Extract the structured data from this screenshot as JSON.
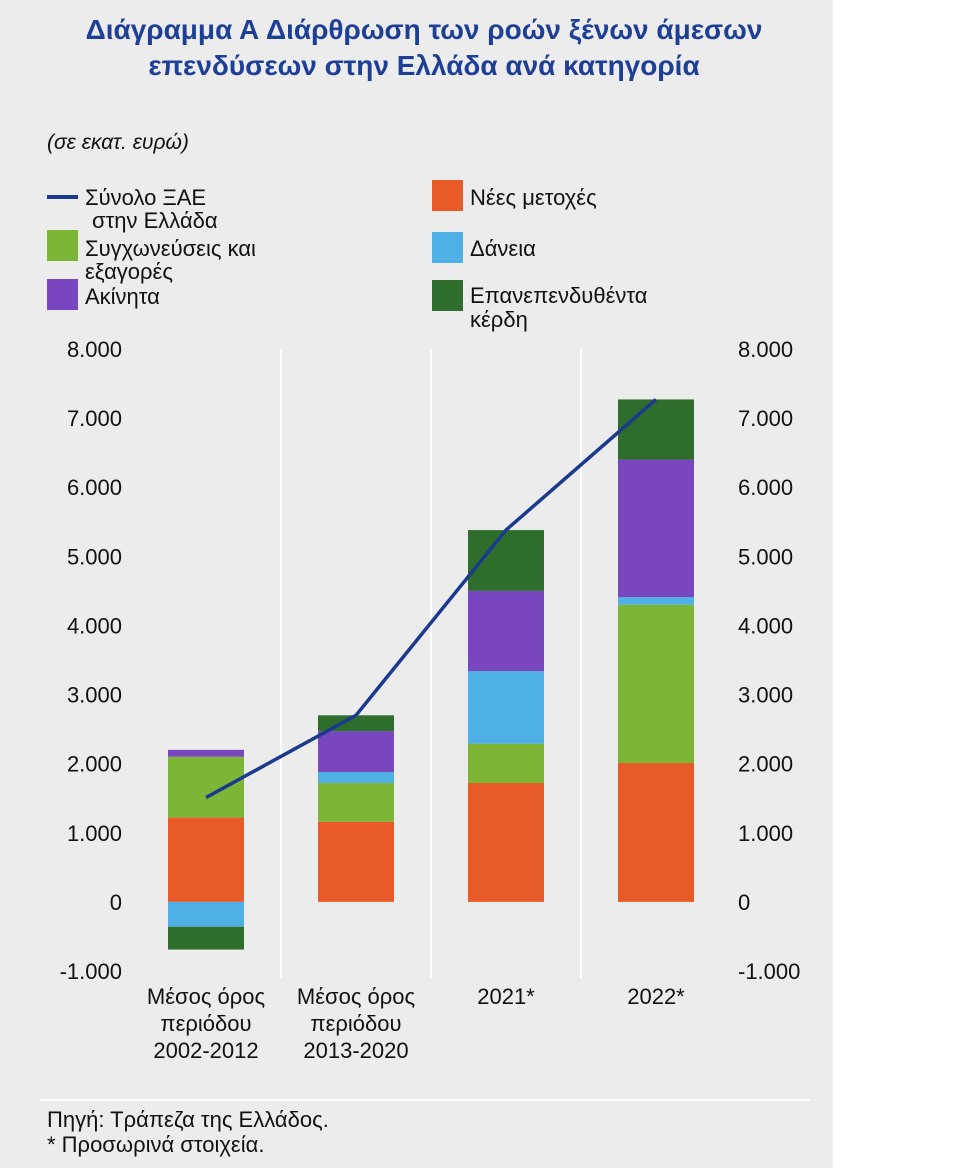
{
  "colors": {
    "panel_background": "#ececec",
    "title": "#1e3f96",
    "grid": "#ffffff",
    "text": "#111111"
  },
  "footer": {
    "source": "Πηγή: Τράπεζα της Ελλάδος.",
    "note": "* Προσωρινά στοιχεία."
  },
  "chart_data": {
    "type": "bar",
    "stacked": true,
    "title_lines": [
      "Διάγραμμα Α Διάρθρωση των ροών ξένων άμεσων",
      "επενδύσεων στην Ελλάδα ανά κατηγορία"
    ],
    "unit_note": "(σε εκατ. ευρώ)",
    "categories": [
      [
        "Μέσος όρος",
        "περιόδου",
        "2002-2012"
      ],
      [
        "Μέσος όρος",
        "περιόδου",
        "2013-2020"
      ],
      [
        "2021*"
      ],
      [
        "2022*"
      ]
    ],
    "ylim": [
      -1000,
      8000
    ],
    "yticks": [
      -1000,
      0,
      1000,
      2000,
      3000,
      4000,
      5000,
      6000,
      7000,
      8000
    ],
    "ytick_labels": [
      "-1.000",
      "0",
      "1.000",
      "2.000",
      "3.000",
      "4.000",
      "5.000",
      "6.000",
      "7.000",
      "8.000"
    ],
    "secondary_y_axis": true,
    "grid": false,
    "legend_position": "top",
    "series": [
      {
        "label_lines": [
          "Νέες μετοχές"
        ],
        "type": "bar",
        "color": "#e95a29",
        "values": [
          1220,
          1160,
          1720,
          2010
        ]
      },
      {
        "label_lines": [
          "Συγχωνεύσεις και",
          "εξαγορές"
        ],
        "type": "bar",
        "color": "#7db537",
        "values": [
          880,
          560,
          570,
          2290
        ]
      },
      {
        "label_lines": [
          "Δάνεια"
        ],
        "type": "bar",
        "color": "#4eb0e4",
        "values": [
          -360,
          160,
          1050,
          110
        ]
      },
      {
        "label_lines": [
          "Ακίνητα"
        ],
        "type": "bar",
        "color": "#7846bf",
        "values": [
          100,
          590,
          1160,
          1990
        ]
      },
      {
        "label_lines": [
          "Επανεπενδυθέντα",
          "κέρδη"
        ],
        "type": "bar",
        "color": "#2e6d2c",
        "values": [
          -330,
          230,
          880,
          870
        ]
      },
      {
        "label_lines": [
          "Σύνολο ΞΑΕ",
          "στην Ελλάδα"
        ],
        "type": "line",
        "color": "#1b3a8e",
        "values": [
          1510,
          2700,
          5380,
          7270
        ]
      }
    ]
  }
}
